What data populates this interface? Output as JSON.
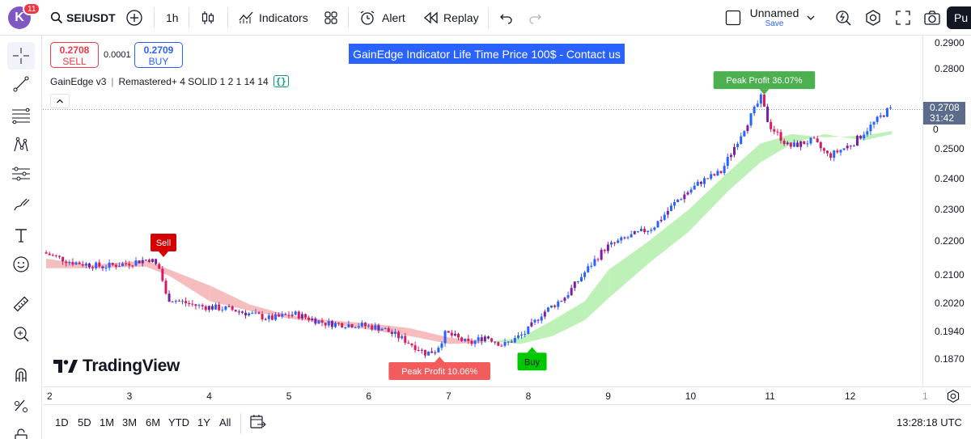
{
  "header": {
    "avatar_letter": "K",
    "notifications": "11",
    "symbol": "SEIUSDT",
    "interval": "1h",
    "indicators_label": "Indicators",
    "alert_label": "Alert",
    "replay_label": "Replay",
    "layout_name": "Unnamed",
    "save_label": "Save",
    "publish_label": "Pu"
  },
  "trade": {
    "sell_price": "0.2708",
    "sell_label": "SELL",
    "spread": "0.0001",
    "buy_price": "0.2709",
    "buy_label": "BUY"
  },
  "promo_text": "GainEdge Indicator Life Time Price 100$ - Contact us",
  "legend": {
    "indicator": "GainEdge v3",
    "params": "Remastered+ 4 SOLID 1 2 1 14 14",
    "source_icon": "{}"
  },
  "brand": "TradingView",
  "price_scale": {
    "labels": [
      "0.2900",
      "0.2800",
      "0.2600",
      "0.2500",
      "0.2400",
      "0.2300",
      "0.2200",
      "0.2100",
      "0.2020",
      "0.1940",
      "0.1870"
    ],
    "overlap_label": "0",
    "current_price": "0.2708",
    "countdown": "31:42"
  },
  "time_scale": {
    "labels": [
      "2",
      "3",
      "4",
      "5",
      "6",
      "7",
      "8",
      "9",
      "10",
      "11",
      "12"
    ],
    "partial_label": "1"
  },
  "bottom": {
    "periods": [
      "1D",
      "5D",
      "1M",
      "3M",
      "6M",
      "YTD",
      "1Y",
      "All"
    ],
    "clock": "13:28:18 UTC"
  },
  "signals": {
    "sell": "Sell",
    "buy": "Buy",
    "peak1": "Peak Profit 10.06%",
    "peak2": "Peak Profit 36.07%"
  },
  "chart_data": {
    "type": "candlestick",
    "symbol": "SEIUSDT",
    "interval": "1h",
    "x_axis_days": [
      "2",
      "3",
      "4",
      "5",
      "6",
      "7",
      "8",
      "9",
      "10",
      "11",
      "12"
    ],
    "y_range": [
      0.183,
      0.294
    ],
    "close_path": [
      {
        "d": 1.95,
        "p": 0.2255
      },
      {
        "d": 2.3,
        "p": 0.2225
      },
      {
        "d": 2.7,
        "p": 0.221
      },
      {
        "d": 3.0,
        "p": 0.222
      },
      {
        "d": 3.3,
        "p": 0.2235
      },
      {
        "d": 3.42,
        "p": 0.22
      },
      {
        "d": 3.5,
        "p": 0.211
      },
      {
        "d": 3.9,
        "p": 0.2085
      },
      {
        "d": 4.3,
        "p": 0.2075
      },
      {
        "d": 4.8,
        "p": 0.2045
      },
      {
        "d": 5.1,
        "p": 0.206
      },
      {
        "d": 5.5,
        "p": 0.203
      },
      {
        "d": 5.9,
        "p": 0.2025
      },
      {
        "d": 6.2,
        "p": 0.2015
      },
      {
        "d": 6.5,
        "p": 0.1975
      },
      {
        "d": 6.75,
        "p": 0.1935
      },
      {
        "d": 6.88,
        "p": 0.1945
      },
      {
        "d": 7.0,
        "p": 0.2
      },
      {
        "d": 7.3,
        "p": 0.1965
      },
      {
        "d": 7.5,
        "p": 0.199
      },
      {
        "d": 7.72,
        "p": 0.196
      },
      {
        "d": 8.0,
        "p": 0.2
      },
      {
        "d": 8.2,
        "p": 0.206
      },
      {
        "d": 8.5,
        "p": 0.2115
      },
      {
        "d": 8.8,
        "p": 0.221
      },
      {
        "d": 9.0,
        "p": 0.227
      },
      {
        "d": 9.3,
        "p": 0.2305
      },
      {
        "d": 9.6,
        "p": 0.2335
      },
      {
        "d": 9.9,
        "p": 0.242
      },
      {
        "d": 10.2,
        "p": 0.248
      },
      {
        "d": 10.45,
        "p": 0.251
      },
      {
        "d": 10.7,
        "p": 0.263
      },
      {
        "d": 10.95,
        "p": 0.2745
      },
      {
        "d": 11.05,
        "p": 0.266
      },
      {
        "d": 11.3,
        "p": 0.259
      },
      {
        "d": 11.6,
        "p": 0.261
      },
      {
        "d": 11.8,
        "p": 0.256
      },
      {
        "d": 12.1,
        "p": 0.26
      },
      {
        "d": 12.3,
        "p": 0.265
      },
      {
        "d": 12.55,
        "p": 0.2708
      }
    ],
    "cloud": [
      {
        "d": 1.95,
        "a": 0.2235,
        "b": 0.2205
      },
      {
        "d": 2.5,
        "a": 0.2215,
        "b": 0.2205
      },
      {
        "d": 3.2,
        "a": 0.223,
        "b": 0.221
      },
      {
        "d": 3.5,
        "a": 0.22,
        "b": 0.218
      },
      {
        "d": 4.0,
        "a": 0.215,
        "b": 0.21
      },
      {
        "d": 4.5,
        "a": 0.209,
        "b": 0.207
      },
      {
        "d": 5.0,
        "a": 0.2055,
        "b": 0.2045
      },
      {
        "d": 5.5,
        "a": 0.204,
        "b": 0.203
      },
      {
        "d": 6.0,
        "a": 0.203,
        "b": 0.201
      },
      {
        "d": 6.5,
        "a": 0.2015,
        "b": 0.199
      },
      {
        "d": 7.0,
        "a": 0.1985,
        "b": 0.1965
      },
      {
        "d": 7.4,
        "a": 0.1975,
        "b": 0.1968
      },
      {
        "d": 7.9,
        "a": 0.1965,
        "b": 0.1985
      },
      {
        "d": 8.3,
        "a": 0.199,
        "b": 0.204
      },
      {
        "d": 8.7,
        "a": 0.204,
        "b": 0.21
      },
      {
        "d": 9.0,
        "a": 0.211,
        "b": 0.22
      },
      {
        "d": 9.5,
        "a": 0.222,
        "b": 0.229
      },
      {
        "d": 10.0,
        "a": 0.232,
        "b": 0.239
      },
      {
        "d": 10.5,
        "a": 0.245,
        "b": 0.251
      },
      {
        "d": 10.9,
        "a": 0.254,
        "b": 0.26
      },
      {
        "d": 11.3,
        "a": 0.26,
        "b": 0.263
      },
      {
        "d": 11.7,
        "a": 0.263,
        "b": 0.262
      },
      {
        "d": 12.2,
        "a": 0.261,
        "b": 0.2625
      },
      {
        "d": 12.55,
        "a": 0.263,
        "b": 0.264
      }
    ],
    "cloud_colors": {
      "bearish": "#f4b6b6",
      "bullish": "#b7f0b0"
    },
    "candle_colors": {
      "up": "#2962ff",
      "down": "#d81b60",
      "neutral": "#7b1fa2"
    },
    "signals": [
      {
        "type": "sell",
        "text": "Sell",
        "d": 3.42,
        "p": 0.2235
      },
      {
        "type": "buy",
        "text": "Buy",
        "d": 8.04,
        "p": 0.196
      },
      {
        "type": "peak",
        "text": "Peak Profit 10.06%",
        "d": 6.88,
        "p": 0.193
      },
      {
        "type": "peak",
        "text": "Peak Profit 36.07%",
        "d": 10.95,
        "p": 0.275
      }
    ]
  }
}
